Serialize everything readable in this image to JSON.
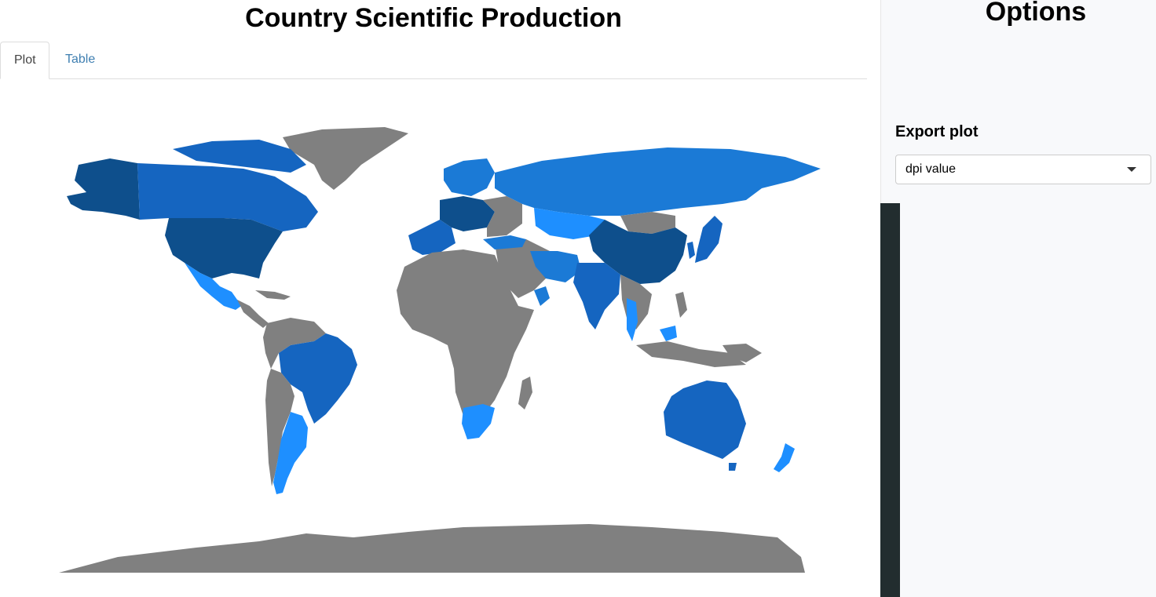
{
  "main": {
    "title": "Country Scientific Production",
    "tabs": [
      {
        "label": "Plot",
        "active": true
      },
      {
        "label": "Table",
        "active": false
      }
    ]
  },
  "sidebar": {
    "title": "Options",
    "export_label": "Export plot",
    "dpi_select": {
      "value": "dpi value"
    }
  },
  "map": {
    "colors": {
      "no_data": "#808080",
      "darkest": "#0e4f8c",
      "dark": "#1565c0",
      "mid": "#1b7ad6",
      "light": "#1e8fff",
      "land_bg": "#ffffff"
    }
  }
}
